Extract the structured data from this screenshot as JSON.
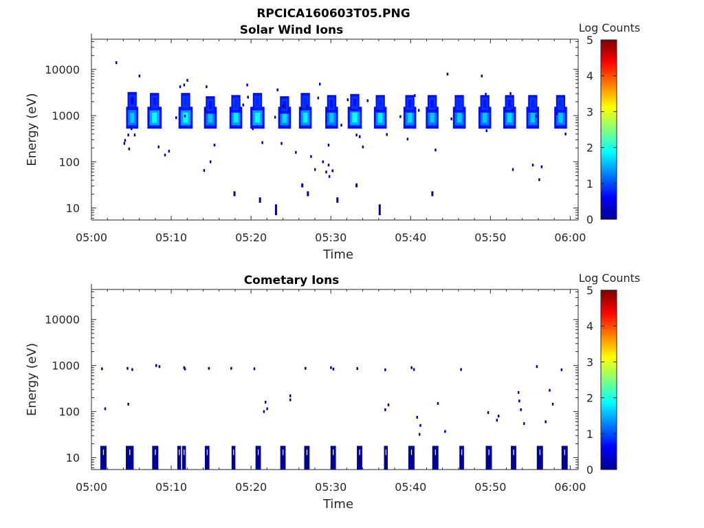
{
  "figure": {
    "title_line1": "RPCICA160603T05.PNG"
  },
  "chart_data": [
    {
      "type": "heatmap",
      "title": "Solar Wind Ions",
      "xlabel": "Time",
      "ylabel": "Energy (eV)",
      "xlim_min": [
        300,
        3660
      ],
      "x_ticks": [
        "05:00",
        "05:10",
        "05:20",
        "05:30",
        "05:40",
        "05:50",
        "06:00"
      ],
      "y_scale": "log",
      "ylim": [
        5.5,
        45000
      ],
      "y_ticks": [
        "10",
        "100",
        "1000",
        "10000"
      ],
      "colorbar": {
        "title": "Log Counts",
        "ticks": [
          "0",
          "1",
          "2",
          "3",
          "4",
          "5"
        ],
        "range": [
          0,
          5
        ],
        "colormap": "jet"
      },
      "blobs": [
        {
          "t": 5.1,
          "e": 900,
          "v": 1.6,
          "dt": 0.55,
          "de": 0.16
        },
        {
          "t": 5.1,
          "e": 2100,
          "v": 0.6,
          "dt": 0.35,
          "de": 0.12
        },
        {
          "t": 7.9,
          "e": 900,
          "v": 1.9,
          "dt": 0.7,
          "de": 0.16
        },
        {
          "t": 7.9,
          "e": 2000,
          "v": 0.7,
          "dt": 0.35,
          "de": 0.12
        },
        {
          "t": 11.8,
          "e": 900,
          "v": 1.9,
          "dt": 0.7,
          "de": 0.16
        },
        {
          "t": 11.8,
          "e": 2000,
          "v": 0.8,
          "dt": 0.35,
          "de": 0.12
        },
        {
          "t": 14.9,
          "e": 900,
          "v": 1.6,
          "dt": 0.6,
          "de": 0.16
        },
        {
          "t": 14.9,
          "e": 1700,
          "v": 0.7,
          "dt": 0.35,
          "de": 0.12
        },
        {
          "t": 18.1,
          "e": 900,
          "v": 1.8,
          "dt": 0.6,
          "de": 0.16
        },
        {
          "t": 18.1,
          "e": 1800,
          "v": 0.8,
          "dt": 0.35,
          "de": 0.12
        },
        {
          "t": 20.8,
          "e": 900,
          "v": 1.9,
          "dt": 0.7,
          "de": 0.16
        },
        {
          "t": 20.8,
          "e": 2000,
          "v": 0.8,
          "dt": 0.35,
          "de": 0.12
        },
        {
          "t": 24.2,
          "e": 900,
          "v": 1.7,
          "dt": 0.6,
          "de": 0.16
        },
        {
          "t": 24.2,
          "e": 1700,
          "v": 0.7,
          "dt": 0.35,
          "de": 0.12
        },
        {
          "t": 26.8,
          "e": 900,
          "v": 1.8,
          "dt": 0.6,
          "de": 0.16
        },
        {
          "t": 26.8,
          "e": 2000,
          "v": 0.8,
          "dt": 0.35,
          "de": 0.12
        },
        {
          "t": 30.1,
          "e": 900,
          "v": 1.6,
          "dt": 0.6,
          "de": 0.16
        },
        {
          "t": 30.1,
          "e": 1800,
          "v": 0.7,
          "dt": 0.35,
          "de": 0.12
        },
        {
          "t": 33.0,
          "e": 900,
          "v": 1.9,
          "dt": 0.7,
          "de": 0.16
        },
        {
          "t": 33.0,
          "e": 1900,
          "v": 0.7,
          "dt": 0.35,
          "de": 0.12
        },
        {
          "t": 36.2,
          "e": 900,
          "v": 1.8,
          "dt": 0.6,
          "de": 0.16
        },
        {
          "t": 36.2,
          "e": 1800,
          "v": 0.8,
          "dt": 0.35,
          "de": 0.12
        },
        {
          "t": 39.9,
          "e": 900,
          "v": 1.7,
          "dt": 0.6,
          "de": 0.16
        },
        {
          "t": 39.9,
          "e": 1800,
          "v": 0.7,
          "dt": 0.35,
          "de": 0.12
        },
        {
          "t": 42.7,
          "e": 900,
          "v": 1.6,
          "dt": 0.6,
          "de": 0.16
        },
        {
          "t": 42.7,
          "e": 1800,
          "v": 0.7,
          "dt": 0.35,
          "de": 0.12
        },
        {
          "t": 46.1,
          "e": 900,
          "v": 1.6,
          "dt": 0.6,
          "de": 0.16
        },
        {
          "t": 46.1,
          "e": 1800,
          "v": 0.8,
          "dt": 0.35,
          "de": 0.12
        },
        {
          "t": 49.3,
          "e": 900,
          "v": 1.6,
          "dt": 0.6,
          "de": 0.16
        },
        {
          "t": 49.3,
          "e": 1800,
          "v": 0.7,
          "dt": 0.35,
          "de": 0.12
        },
        {
          "t": 52.4,
          "e": 900,
          "v": 1.7,
          "dt": 0.6,
          "de": 0.16
        },
        {
          "t": 52.4,
          "e": 1800,
          "v": 0.7,
          "dt": 0.35,
          "de": 0.12
        },
        {
          "t": 55.3,
          "e": 900,
          "v": 1.6,
          "dt": 0.6,
          "de": 0.16
        },
        {
          "t": 55.3,
          "e": 1800,
          "v": 0.8,
          "dt": 0.35,
          "de": 0.12
        },
        {
          "t": 58.8,
          "e": 900,
          "v": 1.6,
          "dt": 0.6,
          "de": 0.16
        },
        {
          "t": 58.8,
          "e": 1800,
          "v": 0.8,
          "dt": 0.35,
          "de": 0.12
        }
      ],
      "points": [
        [
          3.1,
          14000
        ],
        [
          5.0,
          520
        ],
        [
          4.6,
          380
        ],
        [
          4.2,
          290
        ],
        [
          4.1,
          250
        ],
        [
          4.7,
          190
        ],
        [
          6.0,
          7200
        ],
        [
          5.4,
          380
        ],
        [
          8.4,
          210
        ],
        [
          9.2,
          140
        ],
        [
          9.7,
          170
        ],
        [
          11.1,
          4200
        ],
        [
          11.6,
          4600
        ],
        [
          12.0,
          5800
        ],
        [
          11.7,
          980
        ],
        [
          10.6,
          900
        ],
        [
          14.1,
          65
        ],
        [
          14.4,
          4200
        ],
        [
          14.9,
          100
        ],
        [
          15.4,
          230
        ],
        [
          19.0,
          1700
        ],
        [
          19.5,
          4600
        ],
        [
          19.6,
          2500
        ],
        [
          20.2,
          520
        ],
        [
          21.4,
          260
        ],
        [
          23.0,
          920
        ],
        [
          23.3,
          3600
        ],
        [
          23.8,
          250
        ],
        [
          24.0,
          1600
        ],
        [
          25.6,
          160
        ],
        [
          26.2,
          1400
        ],
        [
          27.0,
          1600
        ],
        [
          27.5,
          130
        ],
        [
          28.0,
          68
        ],
        [
          28.4,
          2400
        ],
        [
          28.6,
          4800
        ],
        [
          29.0,
          100
        ],
        [
          29.4,
          60
        ],
        [
          29.8,
          48
        ],
        [
          30.2,
          64
        ],
        [
          29.7,
          85
        ],
        [
          29.7,
          230
        ],
        [
          31.3,
          620
        ],
        [
          32.1,
          2200
        ],
        [
          33.2,
          380
        ],
        [
          33.6,
          350
        ],
        [
          34.0,
          210
        ],
        [
          34.6,
          2100
        ],
        [
          36.0,
          1300
        ],
        [
          37.0,
          390
        ],
        [
          38.7,
          950
        ],
        [
          39.6,
          310
        ],
        [
          40.5,
          2700
        ],
        [
          41.0,
          1300
        ],
        [
          43.1,
          180
        ],
        [
          44.6,
          7900
        ],
        [
          45.1,
          850
        ],
        [
          48.9,
          7200
        ],
        [
          49.5,
          470
        ],
        [
          49.4,
          2900
        ],
        [
          52.5,
          3000
        ],
        [
          52.8,
          68
        ],
        [
          52.7,
          1300
        ],
        [
          55.3,
          85
        ],
        [
          55.7,
          980
        ],
        [
          58.3,
          1100
        ],
        [
          59.4,
          400
        ],
        [
          56.1,
          41
        ],
        [
          56.4,
          78
        ]
      ],
      "columns": [
        {
          "t": 17.9,
          "e0": 18,
          "e1": 23
        },
        {
          "t": 21.1,
          "e0": 13,
          "e1": 17
        },
        {
          "t": 23.1,
          "e0": 7,
          "e1": 12
        },
        {
          "t": 26.4,
          "e0": 28,
          "e1": 34
        },
        {
          "t": 27.1,
          "e0": 18,
          "e1": 23
        },
        {
          "t": 30.8,
          "e0": 13,
          "e1": 17
        },
        {
          "t": 33.2,
          "e0": 28,
          "e1": 34
        },
        {
          "t": 36.1,
          "e0": 7,
          "e1": 12
        },
        {
          "t": 42.7,
          "e0": 18,
          "e1": 23
        }
      ]
    },
    {
      "type": "heatmap",
      "title": "Cometary Ions",
      "xlabel": "Time",
      "ylabel": "Energy (eV)",
      "xlim_min": [
        300,
        3660
      ],
      "x_ticks": [
        "05:00",
        "05:10",
        "05:20",
        "05:30",
        "05:40",
        "05:50",
        "06:00"
      ],
      "y_scale": "log",
      "ylim": [
        5.5,
        45000
      ],
      "y_ticks": [
        "10",
        "100",
        "1000",
        "10000"
      ],
      "colorbar": {
        "title": "Log Counts",
        "ticks": [
          "0",
          "1",
          "2",
          "3",
          "4",
          "5"
        ],
        "range": [
          0,
          5
        ],
        "colormap": "jet"
      },
      "points": [
        [
          1.3,
          850
        ],
        [
          1.7,
          115
        ],
        [
          4.5,
          870
        ],
        [
          4.6,
          145
        ],
        [
          5.1,
          820
        ],
        [
          8.1,
          1000
        ],
        [
          8.5,
          950
        ],
        [
          11.6,
          900
        ],
        [
          11.7,
          840
        ],
        [
          14.7,
          870
        ],
        [
          17.5,
          870
        ],
        [
          20.4,
          850
        ],
        [
          21.6,
          100
        ],
        [
          21.8,
          160
        ],
        [
          22.0,
          115
        ],
        [
          24.9,
          220
        ],
        [
          24.9,
          180
        ],
        [
          26.8,
          870
        ],
        [
          30.0,
          900
        ],
        [
          30.3,
          840
        ],
        [
          33.3,
          860
        ],
        [
          36.8,
          810
        ],
        [
          36.8,
          110
        ],
        [
          37.2,
          140
        ],
        [
          40.1,
          900
        ],
        [
          40.4,
          820
        ],
        [
          40.8,
          75
        ],
        [
          41.2,
          50
        ],
        [
          41.1,
          32
        ],
        [
          43.4,
          150
        ],
        [
          44.3,
          37
        ],
        [
          46.3,
          820
        ],
        [
          49.7,
          95
        ],
        [
          50.8,
          65
        ],
        [
          51.0,
          80
        ],
        [
          53.5,
          260
        ],
        [
          53.6,
          170
        ],
        [
          53.8,
          110
        ],
        [
          54.2,
          55
        ],
        [
          55.8,
          950
        ],
        [
          56.9,
          60
        ],
        [
          57.4,
          290
        ],
        [
          57.8,
          145
        ],
        [
          58.9,
          810
        ]
      ],
      "bars": [
        {
          "t": 1.5,
          "w": 0.6
        },
        {
          "t": 4.8,
          "w": 0.8
        },
        {
          "t": 8.0,
          "w": 0.6
        },
        {
          "t": 11.0,
          "w": 0.3
        },
        {
          "t": 11.6,
          "w": 0.3
        },
        {
          "t": 14.5,
          "w": 0.4
        },
        {
          "t": 17.8,
          "w": 0.3
        },
        {
          "t": 20.9,
          "w": 0.5
        },
        {
          "t": 24.0,
          "w": 0.5
        },
        {
          "t": 27.0,
          "w": 0.5
        },
        {
          "t": 30.3,
          "w": 0.5
        },
        {
          "t": 33.6,
          "w": 0.5
        },
        {
          "t": 36.9,
          "w": 0.3
        },
        {
          "t": 40.1,
          "w": 0.6
        },
        {
          "t": 43.1,
          "w": 0.6
        },
        {
          "t": 46.4,
          "w": 0.4
        },
        {
          "t": 49.8,
          "w": 0.6
        },
        {
          "t": 52.9,
          "w": 0.5
        },
        {
          "t": 56.2,
          "w": 0.6
        },
        {
          "t": 59.3,
          "w": 0.6
        }
      ]
    }
  ]
}
